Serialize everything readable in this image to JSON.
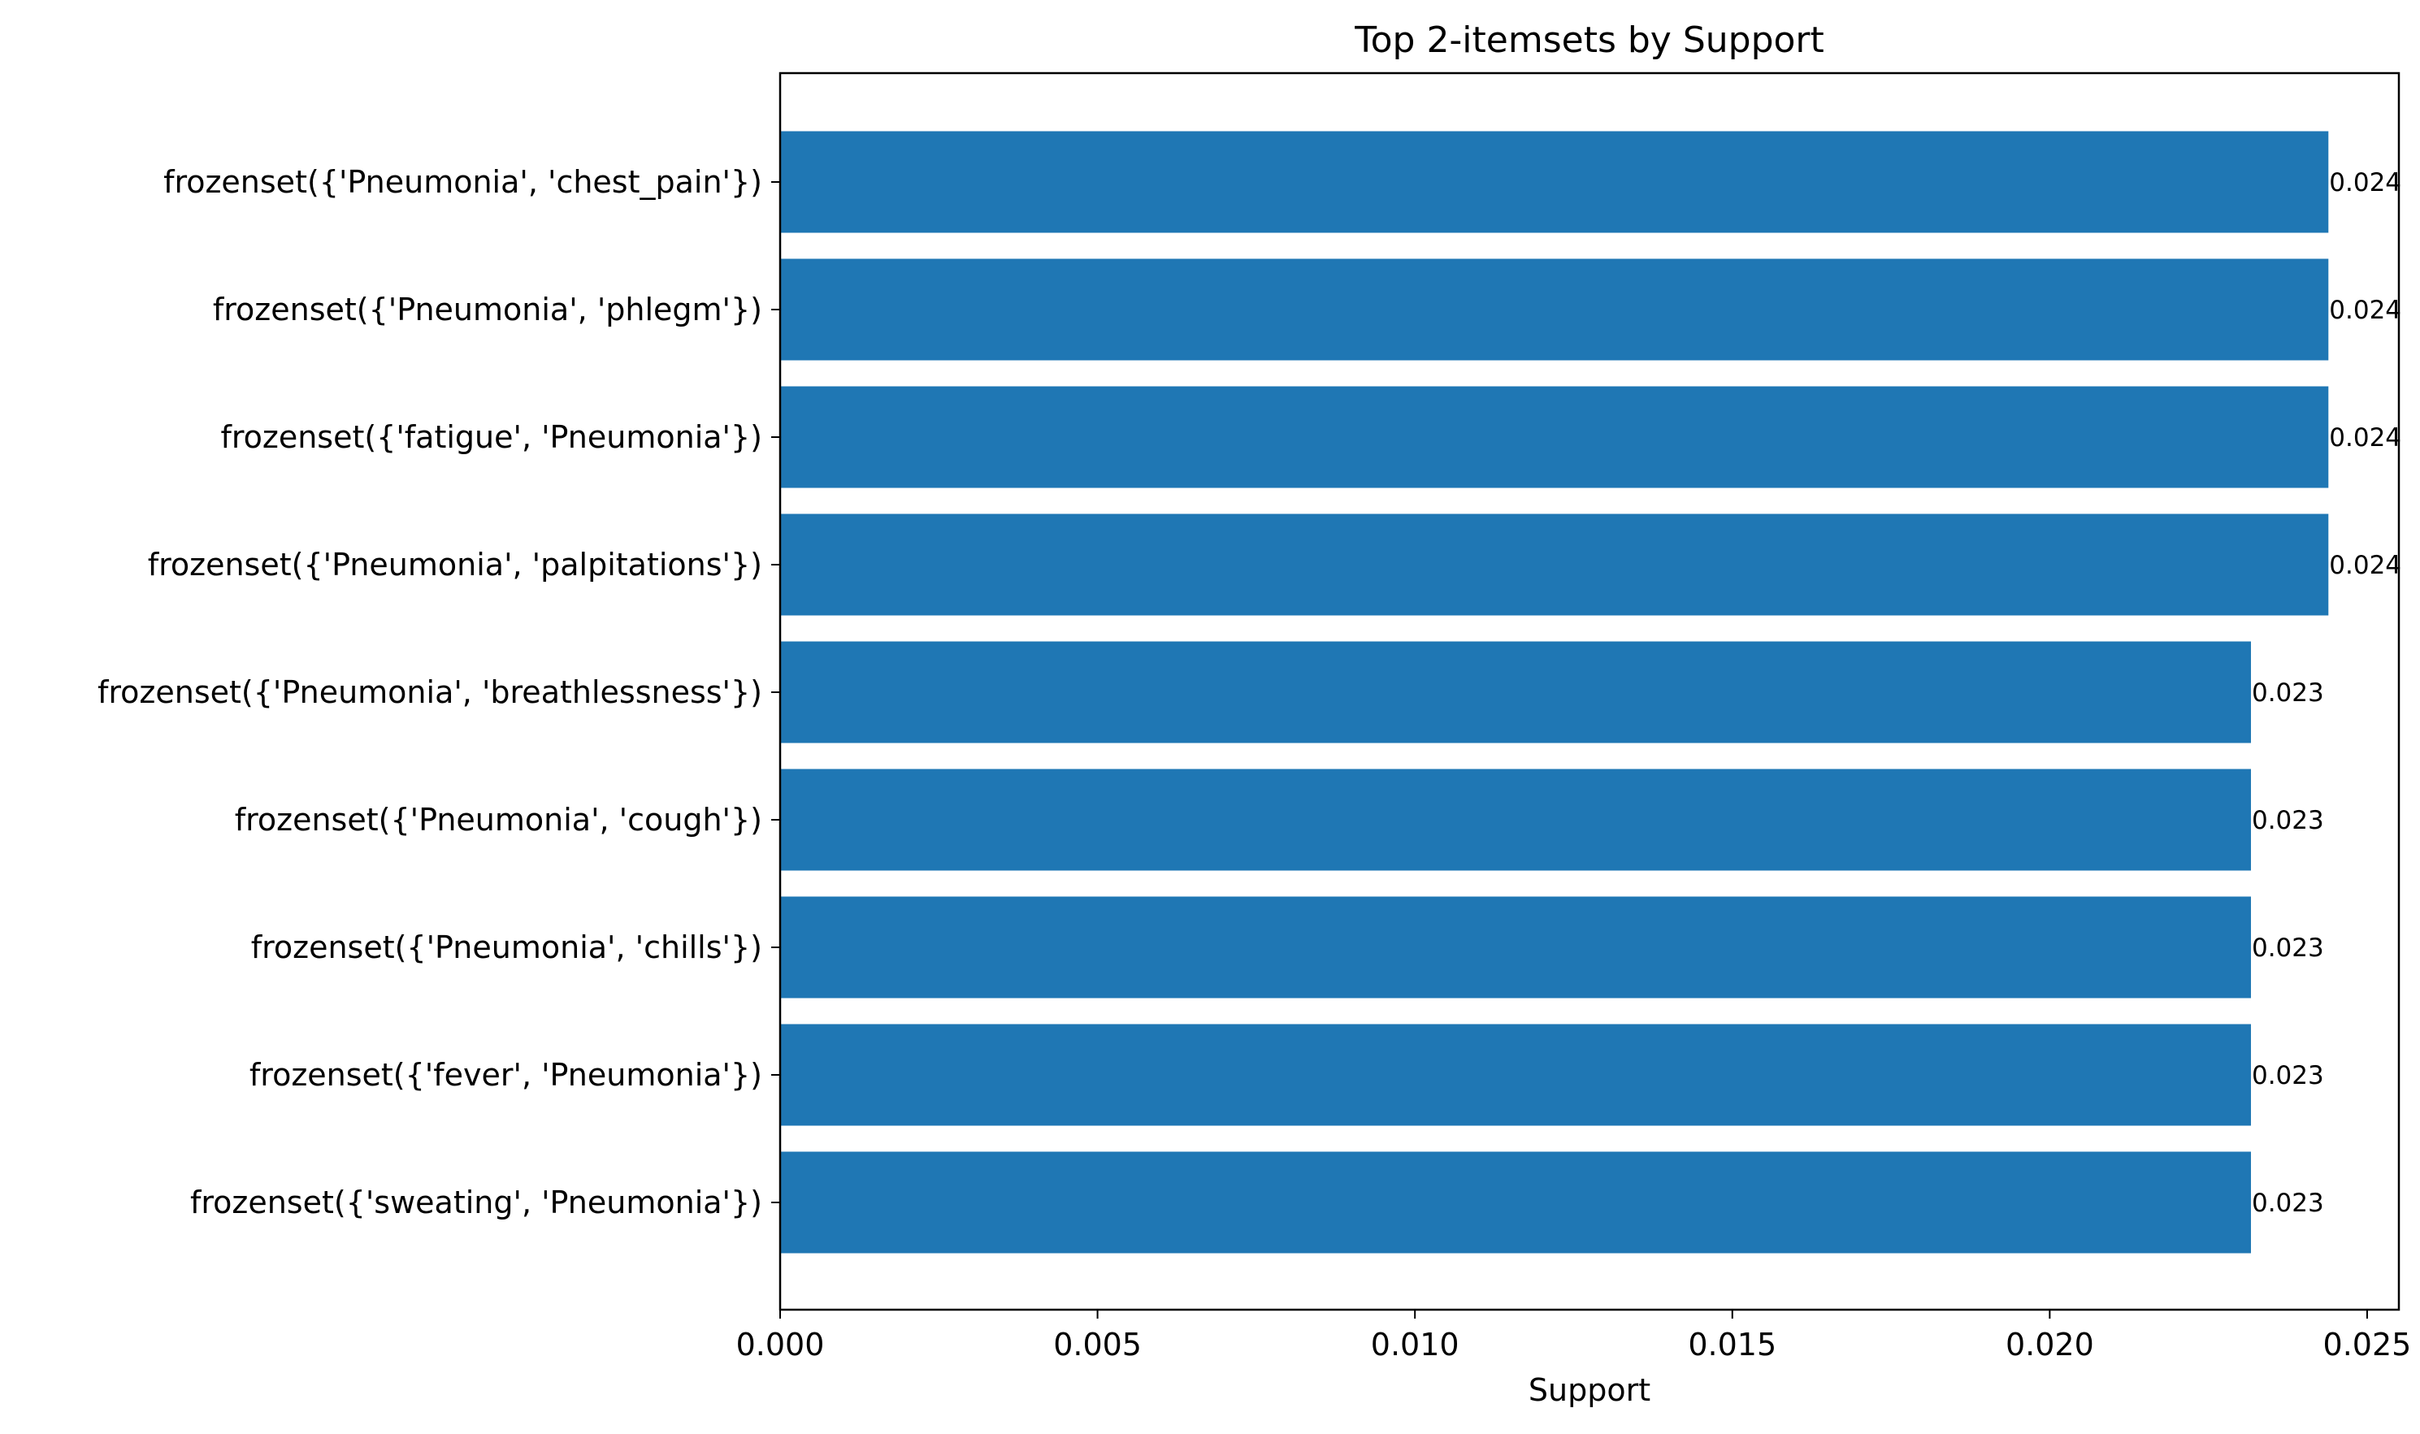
{
  "chart_data": {
    "type": "bar",
    "orientation": "horizontal",
    "title": "Top 2-itemsets by Support",
    "xlabel": "Support",
    "ylabel": "",
    "xlim": [
      0,
      0.0255
    ],
    "x_ticks": [
      "0.000",
      "0.005",
      "0.010",
      "0.015",
      "0.020",
      "0.025"
    ],
    "x_tick_values": [
      0,
      0.005,
      0.01,
      0.015,
      0.02,
      0.025
    ],
    "grid": false,
    "bar_color": "#1f77b4",
    "categories": [
      "frozenset({'Pneumonia', 'chest_pain'})",
      "frozenset({'Pneumonia', 'phlegm'})",
      "frozenset({'fatigue', 'Pneumonia'})",
      "frozenset({'Pneumonia', 'palpitations'})",
      "frozenset({'Pneumonia', 'breathlessness'})",
      "frozenset({'Pneumonia', 'cough'})",
      "frozenset({'Pneumonia', 'chills'})",
      "frozenset({'fever', 'Pneumonia'})",
      "frozenset({'sweating', 'Pneumonia'})"
    ],
    "values": [
      0.02439,
      0.02439,
      0.02439,
      0.02439,
      0.02317,
      0.02317,
      0.02317,
      0.02317,
      0.02317
    ],
    "data_labels": [
      "0.024",
      "0.024",
      "0.024",
      "0.024",
      "0.023",
      "0.023",
      "0.023",
      "0.023",
      "0.023"
    ]
  }
}
